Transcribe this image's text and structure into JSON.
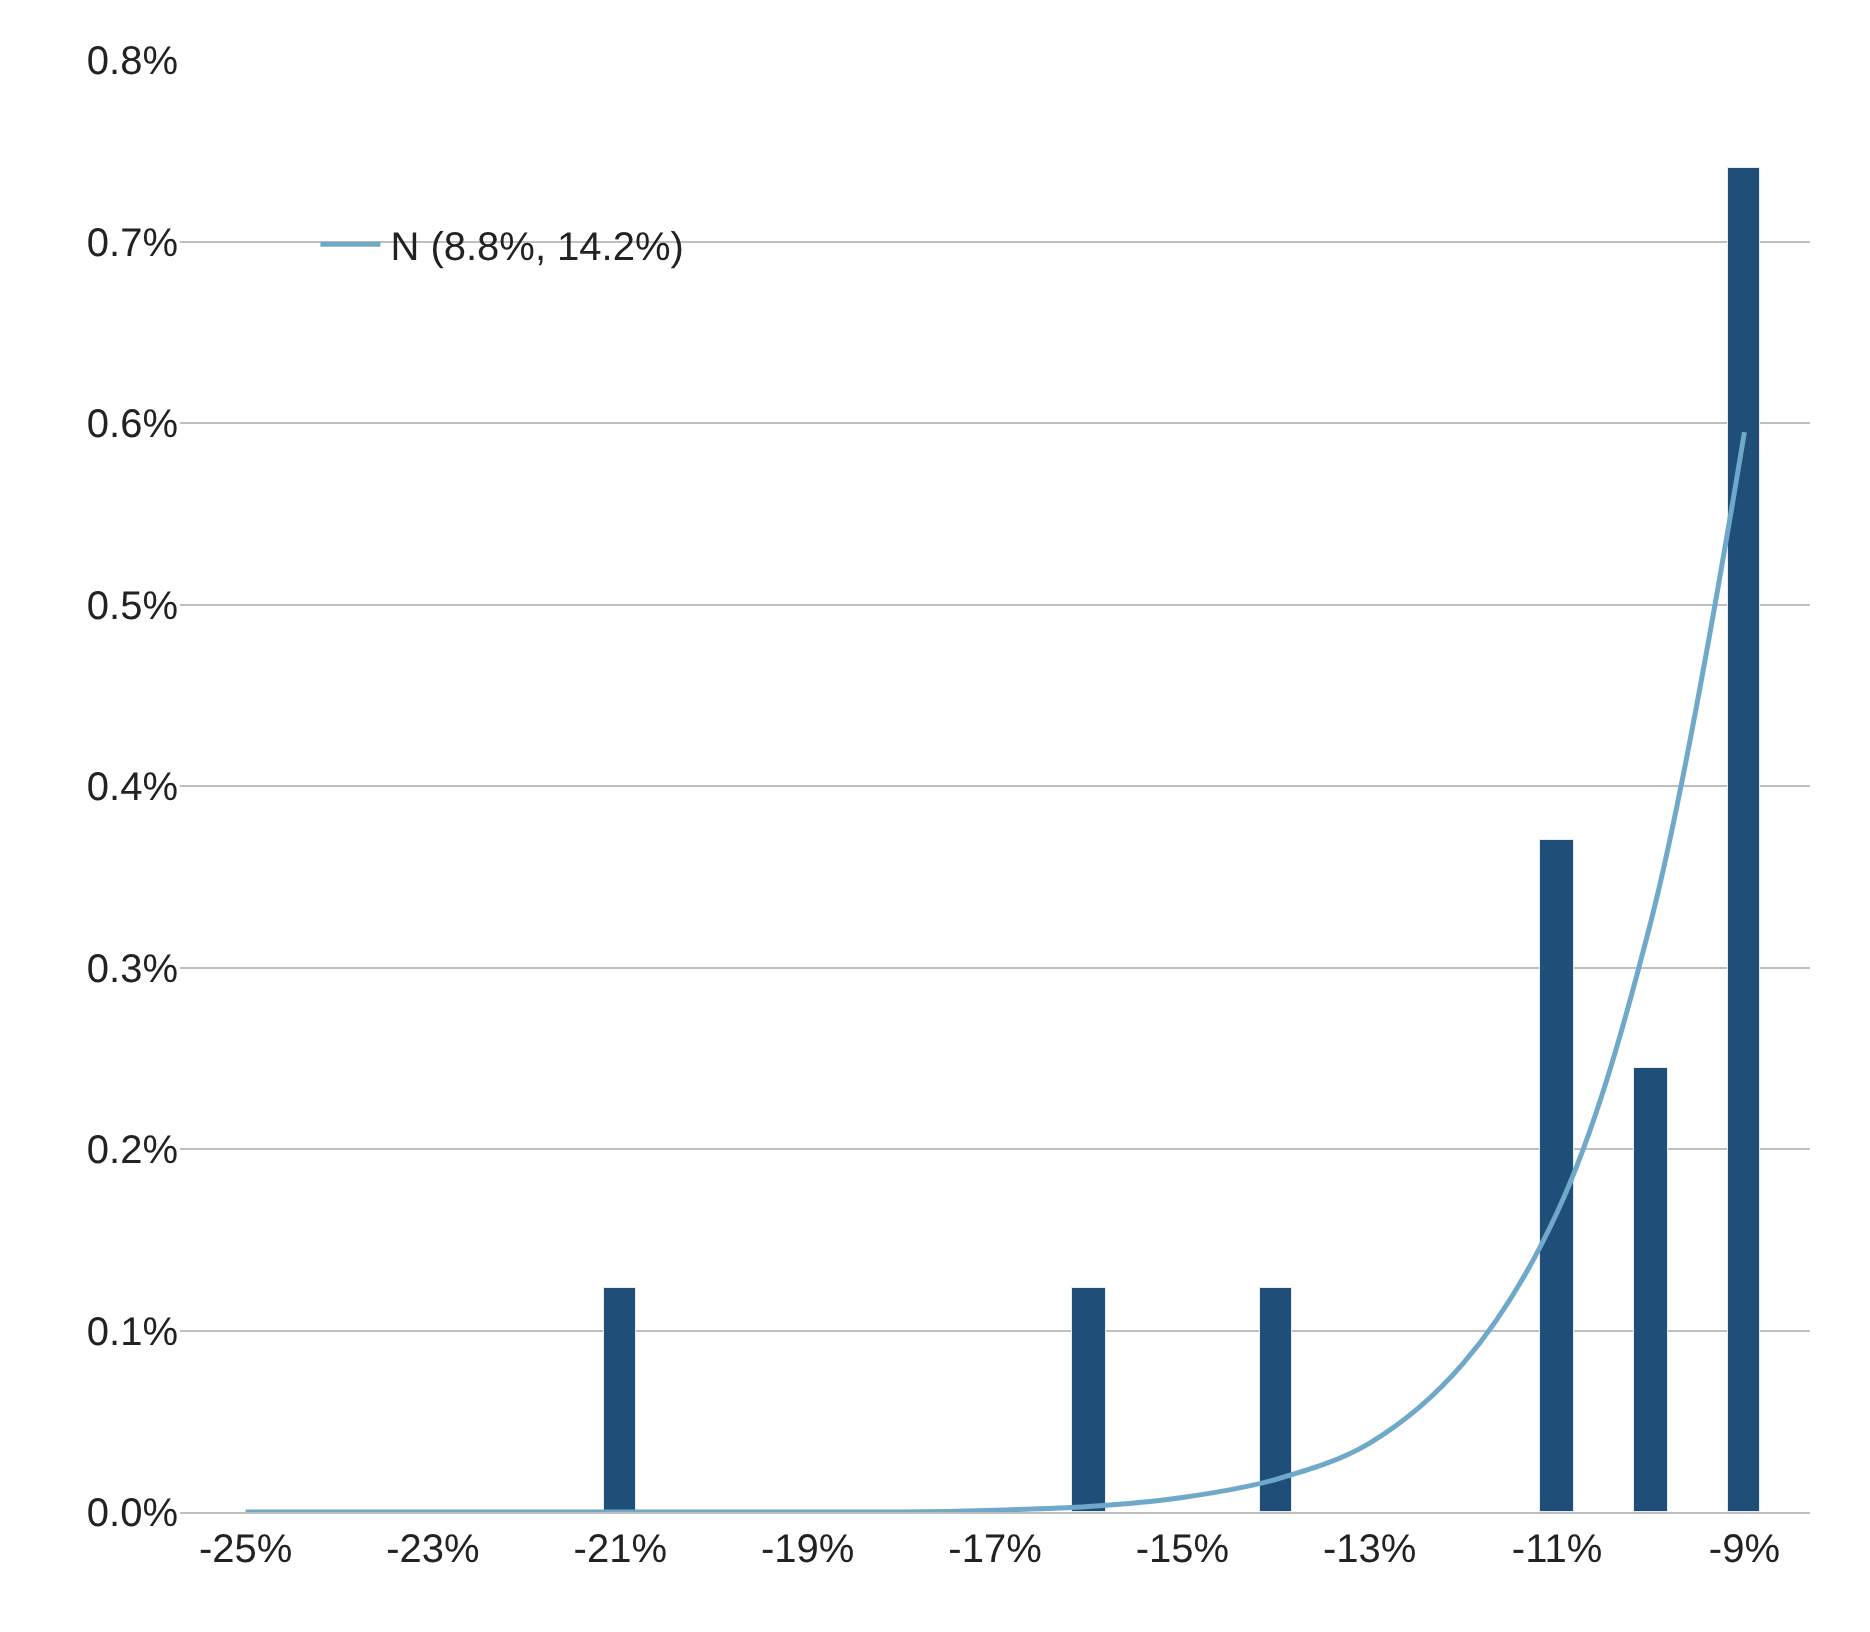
{
  "chart_data": {
    "type": "bar",
    "categories": [
      "-25%",
      null,
      "-23%",
      null,
      "-21%",
      null,
      "-19%",
      null,
      "-17%",
      null,
      "-15%",
      null,
      "-13%",
      null,
      "-11%",
      null,
      "-9%"
    ],
    "series": [
      {
        "color": "#1f4e79",
        "values": [
          null,
          null,
          null,
          null,
          0.123,
          null,
          null,
          null,
          null,
          0.123,
          null,
          0.123,
          null,
          null,
          0.37,
          0.245,
          0.74
        ]
      },
      {
        "type": "line",
        "name": "N (8.8%, 14.2%)",
        "color": "#6fa8c8",
        "values": [
          0,
          0,
          0,
          0,
          0,
          0,
          0,
          0,
          0.001,
          0.003,
          0.008,
          0.018,
          0.038,
          0.082,
          0.165,
          0.325,
          0.595
        ]
      }
    ],
    "ylim": [
      0,
      0.8
    ],
    "yticks": [
      {
        "value": 0,
        "label": "0.0%"
      },
      {
        "value": 0.1,
        "label": "0.1%"
      },
      {
        "value": 0.2,
        "label": "0.2%"
      },
      {
        "value": 0.3,
        "label": "0.3%"
      },
      {
        "value": 0.4,
        "label": "0.4%"
      },
      {
        "value": 0.5,
        "label": "0.5%"
      },
      {
        "value": 0.6,
        "label": "0.6%"
      },
      {
        "value": 0.7,
        "label": "0.7%"
      },
      {
        "value": 0.8,
        "label": "0.8%"
      }
    ],
    "grid": "y",
    "legend": "top left",
    "marker": "none",
    "line_style": "solid"
  }
}
